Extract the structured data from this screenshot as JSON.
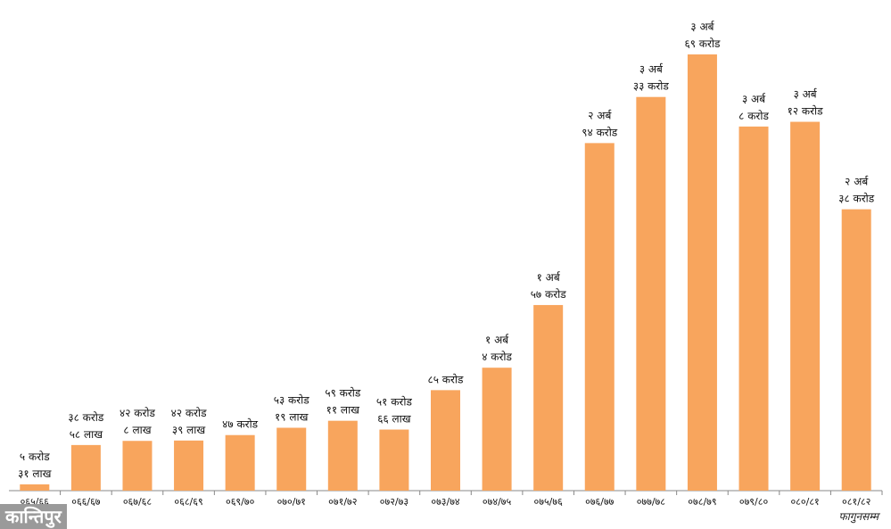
{
  "colors": {
    "bar": "#f8a55d",
    "axis": "#888888",
    "text": "#111111"
  },
  "chart_data": {
    "type": "bar",
    "categories": [
      "०६५/६६",
      "०६६/६७",
      "०६७/६८",
      "०६८/६९",
      "०६९/७०",
      "०७०/७१",
      "०७१/७२",
      "०७२/७३",
      "०७३/७४",
      "०७४/७५",
      "०७५/७६",
      "०७६/७७",
      "०७७/७८",
      "०७८/७९",
      "०७९/८०",
      "०८०/८१",
      "०८१/८२"
    ],
    "values": [
      53100000,
      385800000,
      420800000,
      423900000,
      470000000,
      531900000,
      591100000,
      516600000,
      850000000,
      1040000000,
      1570000000,
      2940000000,
      3330000000,
      3690000000,
      3080000000,
      3120000000,
      2380000000
    ],
    "data_labels": [
      [
        "५ करोड",
        "३१ लाख"
      ],
      [
        "३८ करोड",
        "५८ लाख"
      ],
      [
        "४२ करोड",
        "८ लाख"
      ],
      [
        "४२ करोड",
        "३९ लाख"
      ],
      [
        "४७ करोड"
      ],
      [
        "५३ करोड",
        "१९ लाख"
      ],
      [
        "५९ करोड",
        "११ लाख"
      ],
      [
        "५१ करोड",
        "६६ लाख"
      ],
      [
        "८५ करोड"
      ],
      [
        "१ अर्ब",
        "४ करोड"
      ],
      [
        "१ अर्ब",
        "५७ करोड"
      ],
      [
        "२ अर्ब",
        "९४ करोड"
      ],
      [
        "३ अर्ब",
        "३३ करोड"
      ],
      [
        "३ अर्ब",
        "६९ करोड"
      ],
      [
        "३ अर्ब",
        "८ करोड"
      ],
      [
        "३ अर्ब",
        "१२ करोड"
      ],
      [
        "२ अर्ब",
        "३८ करोड"
      ]
    ],
    "grid": false,
    "note": "फागुनसम्म"
  },
  "logo": {
    "text": "कान्तिपुर"
  }
}
